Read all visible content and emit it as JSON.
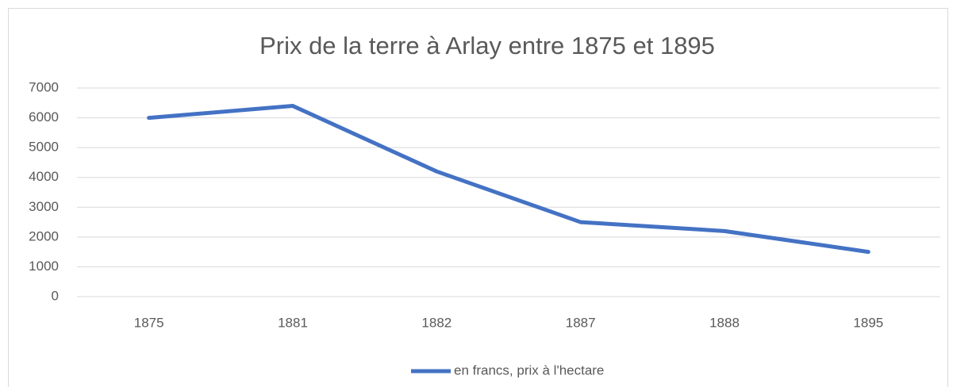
{
  "chart_data": {
    "type": "line",
    "title": "Prix de la terre à Arlay entre 1875 et 1895",
    "categories": [
      "1875",
      "1881",
      "1882",
      "1887",
      "1888",
      "1895"
    ],
    "series": [
      {
        "name": "en francs, prix à l'hectare",
        "color": "#4472c4",
        "values": [
          6000,
          6400,
          4200,
          2500,
          2200,
          1500
        ]
      }
    ],
    "ylim": [
      0,
      7000
    ],
    "yticks": [
      0,
      1000,
      2000,
      3000,
      4000,
      5000,
      6000,
      7000
    ],
    "grid": true,
    "legend": "bottom"
  }
}
